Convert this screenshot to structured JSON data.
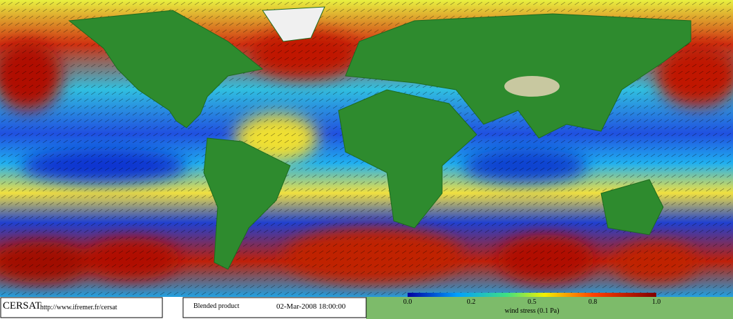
{
  "header": {
    "logo": "CERSAT",
    "url": "http://www.ifremer.fr/cersat",
    "product": "Blended product",
    "date": "02-Mar-2008 18:00:00"
  },
  "colorbar": {
    "ticks": [
      "0.0",
      "0.2",
      "0.5",
      "0.8",
      "1.0"
    ],
    "label": "wind stress (0.1 Pa)"
  }
}
